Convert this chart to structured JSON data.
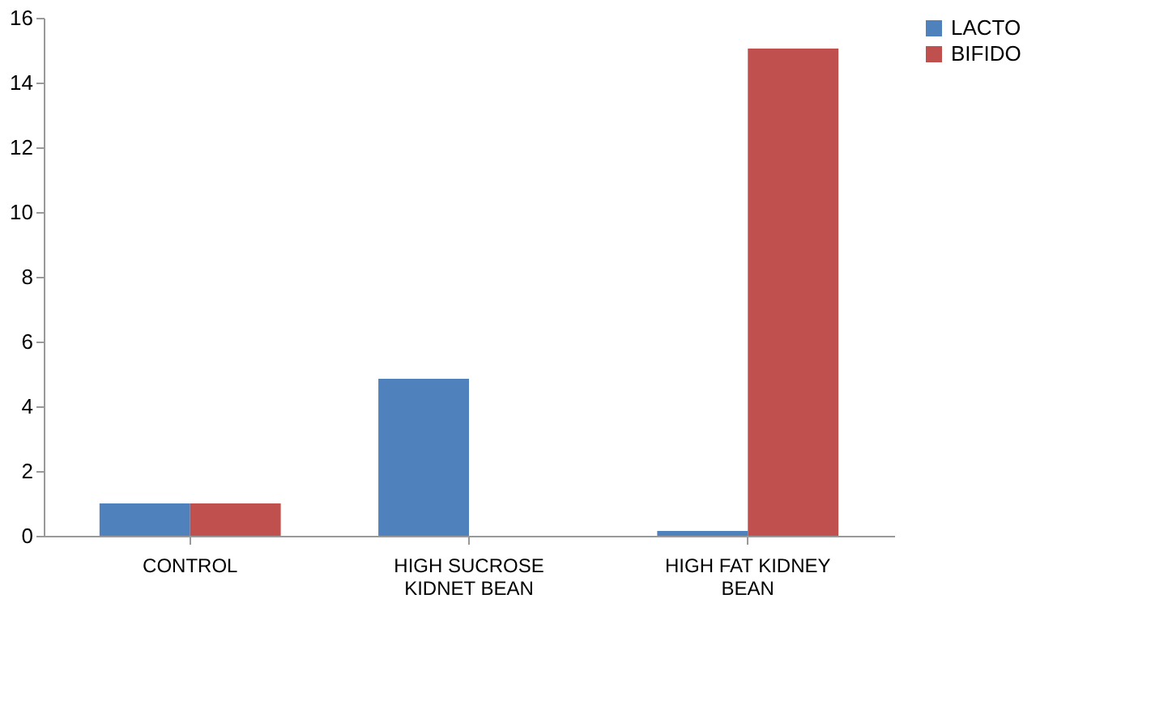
{
  "chart_data": {
    "type": "bar",
    "categories": [
      "CONTROL",
      "HIGH SUCROSE KIDNET BEAN",
      "HIGH FAT KIDNEY BEAN"
    ],
    "series": [
      {
        "name": "LACTO",
        "color": "#4f81bd",
        "values": [
          1,
          4.85,
          0.15
        ]
      },
      {
        "name": "BIFIDO",
        "color": "#c0504d",
        "values": [
          1,
          0,
          15.05
        ]
      }
    ],
    "ylim": [
      0,
      16
    ],
    "yticks": [
      0,
      2,
      4,
      6,
      8,
      10,
      12,
      14,
      16
    ],
    "grid": false,
    "legend": "right"
  }
}
